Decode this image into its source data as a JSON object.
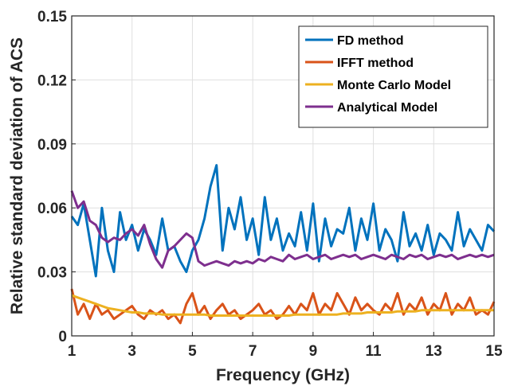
{
  "chart_data": {
    "type": "line",
    "title": "",
    "xlabel": "Frequency (GHz)",
    "ylabel": "Relative standard deviation of ACS",
    "xlim": [
      1,
      15
    ],
    "ylim": [
      0,
      0.15
    ],
    "xticks": [
      1,
      3,
      5,
      7,
      9,
      11,
      13,
      15
    ],
    "yticks": [
      0,
      0.03,
      0.06,
      0.09,
      0.12,
      0.15
    ],
    "xtick_labels": [
      "1",
      "3",
      "5",
      "7",
      "9",
      "11",
      "13",
      "15"
    ],
    "ytick_labels": [
      "0",
      "0.03",
      "0.06",
      "0.09",
      "0.12",
      "0.15"
    ],
    "grid": true,
    "legend_position": "top-right",
    "x": [
      1.0,
      1.2,
      1.4,
      1.6,
      1.8,
      2.0,
      2.2,
      2.4,
      2.6,
      2.8,
      3.0,
      3.2,
      3.4,
      3.6,
      3.8,
      4.0,
      4.2,
      4.4,
      4.6,
      4.8,
      5.0,
      5.2,
      5.4,
      5.6,
      5.8,
      6.0,
      6.2,
      6.4,
      6.6,
      6.8,
      7.0,
      7.2,
      7.4,
      7.6,
      7.8,
      8.0,
      8.2,
      8.4,
      8.6,
      8.8,
      9.0,
      9.2,
      9.4,
      9.6,
      9.8,
      10.0,
      10.2,
      10.4,
      10.6,
      10.8,
      11.0,
      11.2,
      11.4,
      11.6,
      11.8,
      12.0,
      12.2,
      12.4,
      12.6,
      12.8,
      13.0,
      13.2,
      13.4,
      13.6,
      13.8,
      14.0,
      14.2,
      14.4,
      14.6,
      14.8,
      15.0
    ],
    "series": [
      {
        "name": "FD method",
        "color": "#0072bd",
        "values": [
          0.056,
          0.052,
          0.062,
          0.045,
          0.028,
          0.06,
          0.04,
          0.03,
          0.058,
          0.045,
          0.052,
          0.04,
          0.05,
          0.045,
          0.038,
          0.055,
          0.04,
          0.042,
          0.035,
          0.03,
          0.04,
          0.045,
          0.055,
          0.07,
          0.08,
          0.04,
          0.06,
          0.05,
          0.065,
          0.045,
          0.055,
          0.038,
          0.065,
          0.045,
          0.055,
          0.04,
          0.048,
          0.042,
          0.058,
          0.04,
          0.062,
          0.035,
          0.055,
          0.042,
          0.05,
          0.048,
          0.06,
          0.04,
          0.055,
          0.045,
          0.062,
          0.04,
          0.05,
          0.045,
          0.035,
          0.058,
          0.042,
          0.048,
          0.04,
          0.052,
          0.038,
          0.048,
          0.045,
          0.04,
          0.058,
          0.042,
          0.05,
          0.045,
          0.04,
          0.052,
          0.049
        ]
      },
      {
        "name": "IFFT method",
        "color": "#d95319",
        "values": [
          0.022,
          0.01,
          0.015,
          0.008,
          0.015,
          0.01,
          0.012,
          0.008,
          0.01,
          0.012,
          0.014,
          0.01,
          0.008,
          0.012,
          0.01,
          0.012,
          0.008,
          0.01,
          0.006,
          0.015,
          0.02,
          0.01,
          0.014,
          0.008,
          0.012,
          0.015,
          0.01,
          0.012,
          0.008,
          0.01,
          0.012,
          0.015,
          0.01,
          0.012,
          0.008,
          0.01,
          0.014,
          0.01,
          0.015,
          0.012,
          0.02,
          0.01,
          0.015,
          0.012,
          0.02,
          0.015,
          0.01,
          0.018,
          0.012,
          0.015,
          0.012,
          0.01,
          0.015,
          0.012,
          0.02,
          0.01,
          0.015,
          0.012,
          0.018,
          0.01,
          0.015,
          0.012,
          0.02,
          0.01,
          0.015,
          0.012,
          0.018,
          0.01,
          0.012,
          0.01,
          0.016
        ]
      },
      {
        "name": "Monte Carlo Model",
        "color": "#edb120",
        "values": [
          0.019,
          0.018,
          0.017,
          0.016,
          0.015,
          0.014,
          0.013,
          0.0125,
          0.012,
          0.0115,
          0.011,
          0.011,
          0.0105,
          0.0105,
          0.0105,
          0.01,
          0.01,
          0.01,
          0.01,
          0.01,
          0.01,
          0.01,
          0.01,
          0.0095,
          0.0095,
          0.0095,
          0.0095,
          0.0095,
          0.0095,
          0.0095,
          0.0095,
          0.0095,
          0.0095,
          0.0095,
          0.0095,
          0.0095,
          0.0095,
          0.01,
          0.01,
          0.01,
          0.01,
          0.01,
          0.01,
          0.01,
          0.01,
          0.0105,
          0.0105,
          0.0105,
          0.0105,
          0.011,
          0.011,
          0.011,
          0.011,
          0.011,
          0.0115,
          0.0115,
          0.0115,
          0.0115,
          0.012,
          0.012,
          0.012,
          0.012,
          0.012,
          0.012,
          0.012,
          0.012,
          0.012,
          0.012,
          0.012,
          0.012,
          0.012
        ]
      },
      {
        "name": "Analytical Model",
        "color": "#7e2f8e",
        "values": [
          0.068,
          0.06,
          0.063,
          0.054,
          0.052,
          0.046,
          0.044,
          0.046,
          0.045,
          0.048,
          0.05,
          0.047,
          0.052,
          0.043,
          0.036,
          0.032,
          0.04,
          0.042,
          0.045,
          0.048,
          0.046,
          0.035,
          0.033,
          0.034,
          0.035,
          0.034,
          0.033,
          0.035,
          0.034,
          0.035,
          0.034,
          0.036,
          0.035,
          0.037,
          0.036,
          0.035,
          0.038,
          0.036,
          0.037,
          0.038,
          0.036,
          0.037,
          0.038,
          0.036,
          0.037,
          0.038,
          0.037,
          0.038,
          0.036,
          0.037,
          0.038,
          0.037,
          0.036,
          0.038,
          0.037,
          0.036,
          0.038,
          0.037,
          0.038,
          0.036,
          0.037,
          0.038,
          0.037,
          0.038,
          0.036,
          0.037,
          0.038,
          0.037,
          0.038,
          0.037,
          0.038
        ]
      }
    ]
  }
}
